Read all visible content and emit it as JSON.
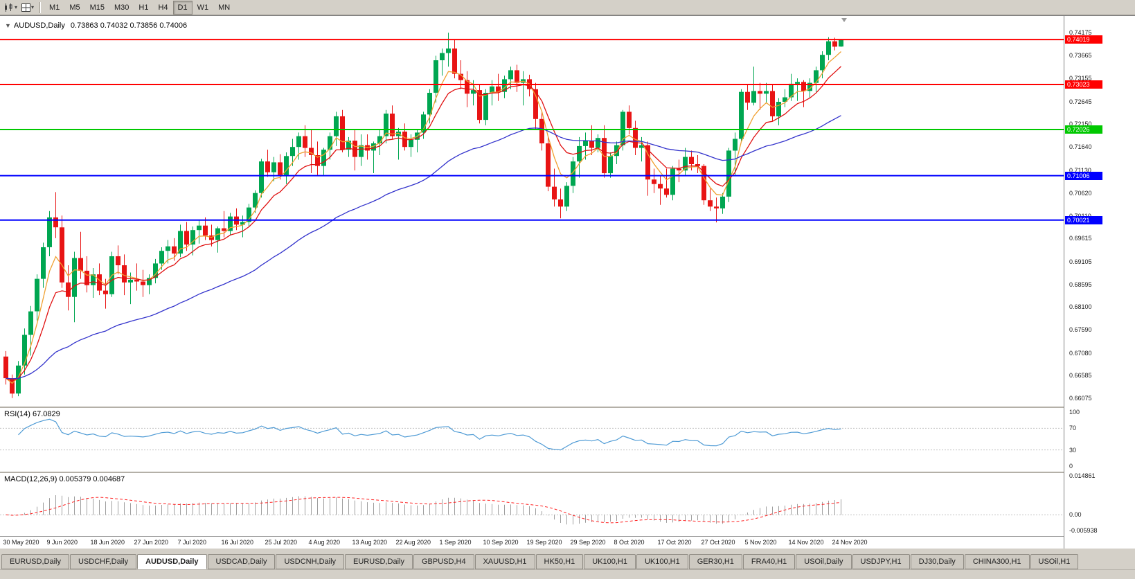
{
  "toolbar": {
    "left_icons": [
      "chart-window-icon",
      "layout-grid-icon"
    ],
    "timeframes": [
      "M1",
      "M5",
      "M15",
      "M30",
      "H1",
      "H4",
      "D1",
      "W1",
      "MN"
    ],
    "active_timeframe": "D1"
  },
  "chart": {
    "collapse_icon": "▼",
    "title": "AUDUSD,Daily",
    "ohlc_text": "0.73863 0.74032 0.73856 0.74006"
  },
  "chart_data": {
    "type": "candlestick",
    "symbol": "AUDUSD",
    "timeframe": "Daily",
    "current_open": 0.73863,
    "current_high": 0.74032,
    "current_low": 0.73856,
    "current_close": 0.74006,
    "up_color": "#00a651",
    "down_color": "#e81414",
    "price_axis": {
      "min": 0.65892,
      "max": 0.74542,
      "labels": [
        "0.74175",
        "0.73665",
        "0.73155",
        "0.72645",
        "0.72150",
        "0.71640",
        "0.71130",
        "0.70620",
        "0.70110",
        "0.69615",
        "0.69105",
        "0.68595",
        "0.68100",
        "0.67590",
        "0.67080",
        "0.66585",
        "0.66075"
      ]
    },
    "x_axis": {
      "candles_per_label": 7,
      "labels": [
        "30 May 2020",
        "9 Jun 2020",
        "18 Jun 2020",
        "27 Jun 2020",
        "7 Jul 2020",
        "16 Jul 2020",
        "25 Jul 2020",
        "4 Aug 2020",
        "13 Aug 2020",
        "22 Aug 2020",
        "1 Sep 2020",
        "10 Sep 2020",
        "19 Sep 2020",
        "29 Sep 2020",
        "8 Oct 2020",
        "17 Oct 2020",
        "27 Oct 2020",
        "5 Nov 2020",
        "14 Nov 2020",
        "24 Nov 2020"
      ]
    },
    "hlines": [
      {
        "price": 0.74019,
        "color": "#ff0000",
        "tag": "0.74019"
      },
      {
        "price": 0.73023,
        "color": "#ff0000",
        "tag": "0.73023"
      },
      {
        "price": 0.72026,
        "color": "#00c800",
        "tag": "0.72026"
      },
      {
        "price": 0.71006,
        "color": "#0000ff",
        "tag": "0.71006"
      },
      {
        "price": 0.70021,
        "color": "#0000ff",
        "tag": "0.70021"
      }
    ],
    "moving_averages": [
      {
        "name": "fast-ma",
        "period": 5,
        "color": "#f0a030"
      },
      {
        "name": "medium-ma",
        "period": 10,
        "color": "#e01010"
      },
      {
        "name": "slow-ma",
        "period": 45,
        "color": "#3333cc"
      }
    ],
    "ohlc": [
      [
        0.67,
        0.6712,
        0.6638,
        0.6652
      ],
      [
        0.6652,
        0.666,
        0.6608,
        0.6618
      ],
      [
        0.6618,
        0.669,
        0.6612,
        0.668
      ],
      [
        0.668,
        0.6762,
        0.666,
        0.6748
      ],
      [
        0.6748,
        0.6812,
        0.6702,
        0.68
      ],
      [
        0.68,
        0.6882,
        0.678,
        0.6872
      ],
      [
        0.6872,
        0.6952,
        0.6852,
        0.6942
      ],
      [
        0.6942,
        0.7022,
        0.6922,
        0.7008
      ],
      [
        0.7008,
        0.7064,
        0.6962,
        0.6986
      ],
      [
        0.6986,
        0.7012,
        0.6852,
        0.6864
      ],
      [
        0.6864,
        0.6902,
        0.6802,
        0.6832
      ],
      [
        0.6832,
        0.6932,
        0.6776,
        0.6918
      ],
      [
        0.6918,
        0.6976,
        0.6872,
        0.689
      ],
      [
        0.689,
        0.6922,
        0.6842,
        0.6858
      ],
      [
        0.6858,
        0.6896,
        0.683,
        0.6882
      ],
      [
        0.6882,
        0.6906,
        0.6836,
        0.6846
      ],
      [
        0.6846,
        0.6872,
        0.6806,
        0.6838
      ],
      [
        0.6838,
        0.6932,
        0.6832,
        0.6922
      ],
      [
        0.6922,
        0.6946,
        0.6882,
        0.6902
      ],
      [
        0.6902,
        0.6926,
        0.6836,
        0.6864
      ],
      [
        0.6864,
        0.6886,
        0.6816,
        0.687
      ],
      [
        0.687,
        0.6906,
        0.6846,
        0.6866
      ],
      [
        0.6866,
        0.6892,
        0.6832,
        0.6858
      ],
      [
        0.6858,
        0.6882,
        0.6838,
        0.6874
      ],
      [
        0.6874,
        0.6916,
        0.6862,
        0.6906
      ],
      [
        0.6906,
        0.6942,
        0.6892,
        0.6934
      ],
      [
        0.6934,
        0.6958,
        0.6906,
        0.6944
      ],
      [
        0.6944,
        0.6962,
        0.6912,
        0.6928
      ],
      [
        0.6928,
        0.6992,
        0.692,
        0.6978
      ],
      [
        0.6978,
        0.6998,
        0.6934,
        0.6948
      ],
      [
        0.6948,
        0.6988,
        0.6924,
        0.698
      ],
      [
        0.698,
        0.7002,
        0.695,
        0.699
      ],
      [
        0.699,
        0.7008,
        0.6958,
        0.6968
      ],
      [
        0.6968,
        0.6992,
        0.6944,
        0.6958
      ],
      [
        0.6958,
        0.6988,
        0.693,
        0.6984
      ],
      [
        0.6984,
        0.7022,
        0.6964,
        0.6978
      ],
      [
        0.6978,
        0.7018,
        0.6968,
        0.701
      ],
      [
        0.701,
        0.7028,
        0.698,
        0.6992
      ],
      [
        0.6992,
        0.7012,
        0.6964,
        0.6998
      ],
      [
        0.6998,
        0.7038,
        0.6988,
        0.703
      ],
      [
        0.703,
        0.7068,
        0.7018,
        0.7062
      ],
      [
        0.7062,
        0.7138,
        0.7052,
        0.7132
      ],
      [
        0.7132,
        0.7158,
        0.7098,
        0.7108
      ],
      [
        0.7108,
        0.7142,
        0.7088,
        0.713
      ],
      [
        0.713,
        0.7148,
        0.7092,
        0.7102
      ],
      [
        0.7102,
        0.7152,
        0.7082,
        0.7144
      ],
      [
        0.7144,
        0.7182,
        0.7122,
        0.7164
      ],
      [
        0.7164,
        0.7196,
        0.7136,
        0.7188
      ],
      [
        0.7188,
        0.7212,
        0.7142,
        0.7162
      ],
      [
        0.7162,
        0.7202,
        0.7106,
        0.7146
      ],
      [
        0.7146,
        0.7176,
        0.7102,
        0.7122
      ],
      [
        0.7122,
        0.7162,
        0.7102,
        0.7158
      ],
      [
        0.7158,
        0.7196,
        0.7136,
        0.7188
      ],
      [
        0.7188,
        0.7242,
        0.7166,
        0.7232
      ],
      [
        0.7232,
        0.7246,
        0.7152,
        0.7158
      ],
      [
        0.7158,
        0.7186,
        0.7142,
        0.7178
      ],
      [
        0.7178,
        0.7202,
        0.7112,
        0.7142
      ],
      [
        0.7142,
        0.7192,
        0.7122,
        0.7168
      ],
      [
        0.7168,
        0.7192,
        0.7136,
        0.7156
      ],
      [
        0.7156,
        0.7176,
        0.7106,
        0.7172
      ],
      [
        0.7172,
        0.7202,
        0.7146,
        0.7188
      ],
      [
        0.7188,
        0.7246,
        0.7172,
        0.7238
      ],
      [
        0.7238,
        0.7256,
        0.7182,
        0.7188
      ],
      [
        0.7188,
        0.7206,
        0.7136,
        0.7198
      ],
      [
        0.7198,
        0.7216,
        0.7156,
        0.7164
      ],
      [
        0.7164,
        0.7192,
        0.7142,
        0.718
      ],
      [
        0.718,
        0.7202,
        0.7152,
        0.7196
      ],
      [
        0.7196,
        0.7242,
        0.7182,
        0.7236
      ],
      [
        0.7236,
        0.7292,
        0.7216,
        0.7284
      ],
      [
        0.7284,
        0.7366,
        0.7262,
        0.7356
      ],
      [
        0.7356,
        0.7382,
        0.7322,
        0.7372
      ],
      [
        0.7372,
        0.7417,
        0.7342,
        0.7382
      ],
      [
        0.7382,
        0.7402,
        0.7316,
        0.7326
      ],
      [
        0.7326,
        0.7356,
        0.7292,
        0.7312
      ],
      [
        0.7312,
        0.7332,
        0.7252,
        0.7282
      ],
      [
        0.7282,
        0.7312,
        0.7256,
        0.729
      ],
      [
        0.729,
        0.7302,
        0.7216,
        0.7224
      ],
      [
        0.7224,
        0.7292,
        0.7212,
        0.7284
      ],
      [
        0.7284,
        0.7312,
        0.7256,
        0.7298
      ],
      [
        0.7298,
        0.7326,
        0.7266,
        0.7286
      ],
      [
        0.7286,
        0.7322,
        0.7272,
        0.7314
      ],
      [
        0.7314,
        0.7342,
        0.7292,
        0.7334
      ],
      [
        0.7334,
        0.7346,
        0.7286,
        0.7306
      ],
      [
        0.7306,
        0.7332,
        0.7256,
        0.7314
      ],
      [
        0.7314,
        0.7324,
        0.7276,
        0.7292
      ],
      [
        0.7292,
        0.7306,
        0.7202,
        0.7226
      ],
      [
        0.7226,
        0.7242,
        0.7156,
        0.7172
      ],
      [
        0.7172,
        0.7186,
        0.7066,
        0.7076
      ],
      [
        0.7076,
        0.7116,
        0.7032,
        0.7048
      ],
      [
        0.7048,
        0.7072,
        0.7006,
        0.7032
      ],
      [
        0.7032,
        0.7086,
        0.7022,
        0.7078
      ],
      [
        0.7078,
        0.7142,
        0.7062,
        0.7132
      ],
      [
        0.7132,
        0.7186,
        0.7096,
        0.7166
      ],
      [
        0.7166,
        0.7196,
        0.7136,
        0.7178
      ],
      [
        0.7178,
        0.7212,
        0.7146,
        0.7162
      ],
      [
        0.7162,
        0.7192,
        0.7152,
        0.7184
      ],
      [
        0.7184,
        0.7212,
        0.7096,
        0.7106
      ],
      [
        0.7106,
        0.7152,
        0.7096,
        0.7144
      ],
      [
        0.7144,
        0.7176,
        0.7126,
        0.7168
      ],
      [
        0.7168,
        0.7246,
        0.7156,
        0.7242
      ],
      [
        0.7242,
        0.7256,
        0.7192,
        0.7206
      ],
      [
        0.7206,
        0.7222,
        0.7146,
        0.7162
      ],
      [
        0.7162,
        0.7186,
        0.7132,
        0.7168
      ],
      [
        0.7168,
        0.7176,
        0.7056,
        0.7092
      ],
      [
        0.7092,
        0.7116,
        0.7062,
        0.7082
      ],
      [
        0.7082,
        0.7102,
        0.7036,
        0.7072
      ],
      [
        0.7072,
        0.7116,
        0.7052,
        0.7058
      ],
      [
        0.7058,
        0.7122,
        0.7046,
        0.7116
      ],
      [
        0.7116,
        0.7136,
        0.7086,
        0.7112
      ],
      [
        0.7112,
        0.7162,
        0.7102,
        0.7142
      ],
      [
        0.7142,
        0.7156,
        0.7112,
        0.7126
      ],
      [
        0.7126,
        0.7146,
        0.7106,
        0.7122
      ],
      [
        0.7122,
        0.7126,
        0.7036,
        0.7046
      ],
      [
        0.7046,
        0.7072,
        0.7022,
        0.7032
      ],
      [
        0.7032,
        0.7052,
        0.6997,
        0.7028
      ],
      [
        0.7028,
        0.7062,
        0.7016,
        0.7054
      ],
      [
        0.7054,
        0.7162,
        0.7042,
        0.7156
      ],
      [
        0.7156,
        0.7196,
        0.7102,
        0.7182
      ],
      [
        0.7182,
        0.7292,
        0.7176,
        0.7286
      ],
      [
        0.7286,
        0.7302,
        0.7246,
        0.7262
      ],
      [
        0.7262,
        0.7342,
        0.7256,
        0.7288
      ],
      [
        0.7288,
        0.7306,
        0.7246,
        0.7282
      ],
      [
        0.7282,
        0.7306,
        0.7262,
        0.7288
      ],
      [
        0.7288,
        0.7302,
        0.7222,
        0.7232
      ],
      [
        0.7232,
        0.7272,
        0.7212,
        0.7264
      ],
      [
        0.7264,
        0.7292,
        0.7252,
        0.7274
      ],
      [
        0.7274,
        0.7326,
        0.7266,
        0.7304
      ],
      [
        0.7304,
        0.7316,
        0.7266,
        0.7308
      ],
      [
        0.7308,
        0.7312,
        0.7252,
        0.7288
      ],
      [
        0.7288,
        0.7316,
        0.7272,
        0.7306
      ],
      [
        0.7306,
        0.7342,
        0.7286,
        0.7334
      ],
      [
        0.7334,
        0.7376,
        0.7316,
        0.7368
      ],
      [
        0.7368,
        0.7407,
        0.7356,
        0.7398
      ],
      [
        0.7398,
        0.7406,
        0.7378,
        0.7386
      ],
      [
        0.73863,
        0.74032,
        0.73856,
        0.74006
      ]
    ]
  },
  "rsi_panel": {
    "label": "RSI(14) 67.0829",
    "period": 14,
    "current_value": 67.0829,
    "axis_labels": [
      "100",
      "70",
      "30",
      "0"
    ],
    "upper_level": 70,
    "lower_level": 30,
    "line_color": "#4f9bd5",
    "level_line_color": "#c0c0c0"
  },
  "macd_panel": {
    "label": "MACD(12,26,9) 0.005379 0.004687",
    "fast": 12,
    "slow": 26,
    "signal": 9,
    "current_macd": 0.005379,
    "current_signal": 0.004687,
    "axis_labels": [
      {
        "text": "0.014861",
        "value": 0.014861
      },
      {
        "text": "0.00",
        "value": 0
      },
      {
        "text": "-0.005938",
        "value": -0.005938
      }
    ],
    "range": {
      "min": -0.005938,
      "max": 0.014861
    },
    "histogram_color": "#9e9e9e",
    "signal_color": "#ff2020",
    "zero_line_color": "#c0c0c0"
  },
  "bottom_tabs": {
    "active_index": 2,
    "items": [
      "EURUSD,Daily",
      "USDCHF,Daily",
      "AUDUSD,Daily",
      "USDCAD,Daily",
      "USDCNH,Daily",
      "EURUSD,Daily",
      "GBPUSD,H4",
      "XAUUSD,H1",
      "HK50,H1",
      "UK100,H1",
      "UK100,H1",
      "GER30,H1",
      "FRA40,H1",
      "USOil,Daily",
      "USDJPY,H1",
      "DJ30,Daily",
      "CHINA300,H1",
      "USOil,H1"
    ]
  }
}
